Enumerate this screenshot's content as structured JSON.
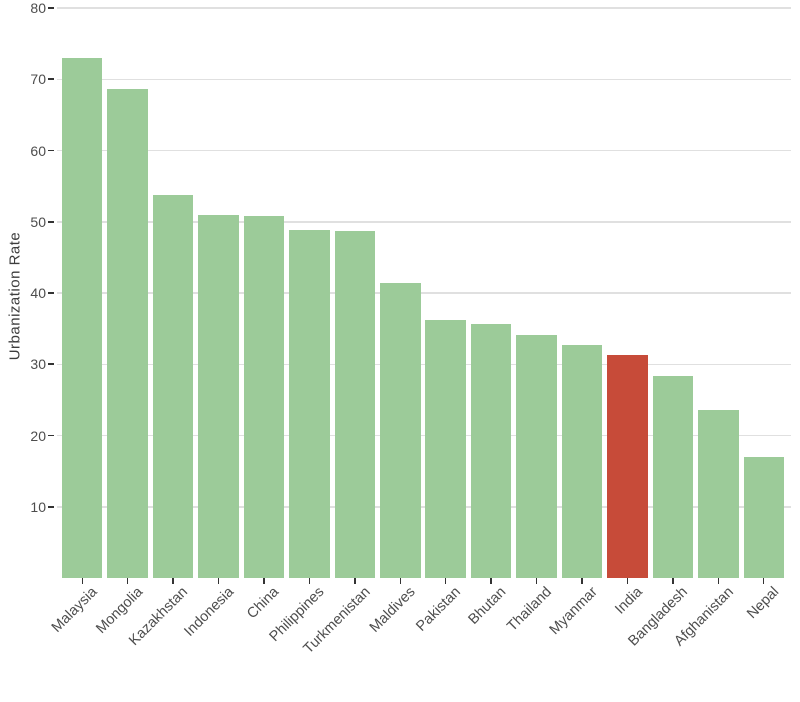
{
  "chart_data": {
    "type": "bar",
    "title": "",
    "xlabel": "",
    "ylabel": "Urbanization  Rate",
    "categories": [
      "Malaysia",
      "Mongolia",
      "Kazakhstan",
      "Indonesia",
      "China",
      "Philippines",
      "Turkmenistan",
      "Maldives",
      "Pakistan",
      "Bhutan",
      "Thailand",
      "Myanmar",
      "India",
      "Bangladesh",
      "Afghanistan",
      "Nepal"
    ],
    "values": [
      73.0,
      68.6,
      53.8,
      50.9,
      50.8,
      48.8,
      48.7,
      41.4,
      36.2,
      35.7,
      34.1,
      32.7,
      31.3,
      28.4,
      23.6,
      17.0
    ],
    "highlighted_category": "India",
    "yticks": [
      10,
      20,
      30,
      40,
      50,
      60,
      70,
      80
    ],
    "ylim": [
      0,
      80
    ],
    "grid": "horizontal-major-only",
    "legend": "none",
    "colors": {
      "bar_default": "#9CCB99",
      "bar_highlight": "#C74B39",
      "gridline": "#E0E0E0",
      "tick_text": "#4D4D4D",
      "axis_title_text": "#3D3D3D",
      "tick_mark": "#333333",
      "background": "#FFFFFF"
    }
  }
}
